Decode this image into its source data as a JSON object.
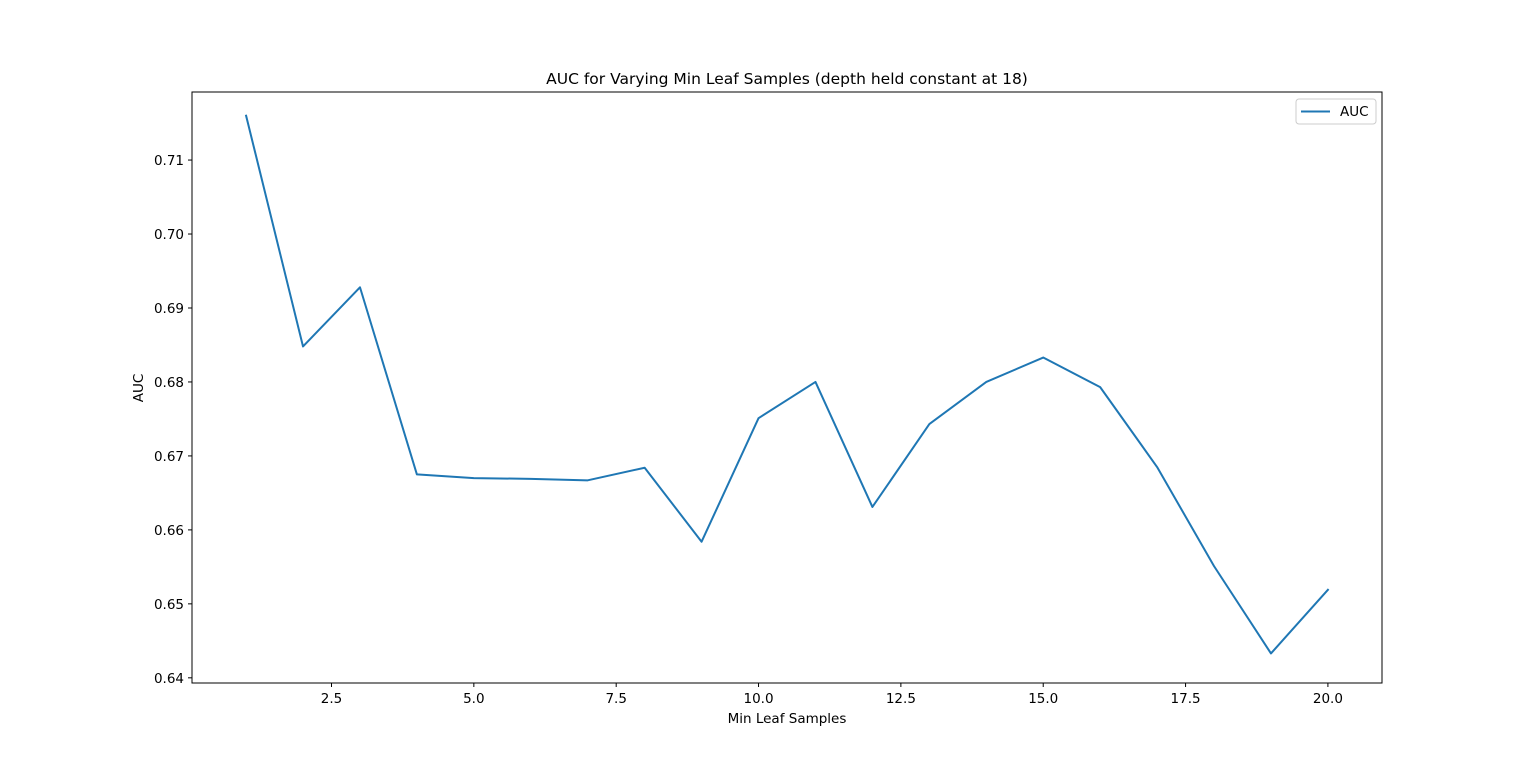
{
  "chart_data": {
    "type": "line",
    "title": "AUC for Varying Min Leaf Samples (depth held constant at 18)",
    "xlabel": "Min Leaf Samples",
    "ylabel": "AUC",
    "xlim": [
      0.05,
      20.95
    ],
    "ylim": [
      0.6393,
      0.7192
    ],
    "xticks": [
      2.5,
      5.0,
      7.5,
      10.0,
      12.5,
      15.0,
      17.5,
      20.0
    ],
    "xtick_labels": [
      "2.5",
      "5.0",
      "7.5",
      "10.0",
      "12.5",
      "15.0",
      "17.5",
      "20.0"
    ],
    "yticks": [
      0.64,
      0.65,
      0.66,
      0.67,
      0.68,
      0.69,
      0.7,
      0.71
    ],
    "ytick_labels": [
      "0.64",
      "0.65",
      "0.66",
      "0.67",
      "0.68",
      "0.69",
      "0.70",
      "0.71"
    ],
    "grid": false,
    "legend_position": "top-right",
    "series": [
      {
        "name": "AUC",
        "color": "#1f77b4",
        "x": [
          1,
          2,
          3,
          4,
          5,
          6,
          7,
          8,
          9,
          10,
          11,
          12,
          13,
          14,
          15,
          16,
          17,
          18,
          19,
          20
        ],
        "y": [
          0.716,
          0.6848,
          0.6928,
          0.6675,
          0.667,
          0.6669,
          0.6667,
          0.6684,
          0.6584,
          0.6751,
          0.68,
          0.6631,
          0.6743,
          0.68,
          0.6833,
          0.6793,
          0.6685,
          0.6551,
          0.6433,
          0.6519
        ]
      }
    ]
  }
}
